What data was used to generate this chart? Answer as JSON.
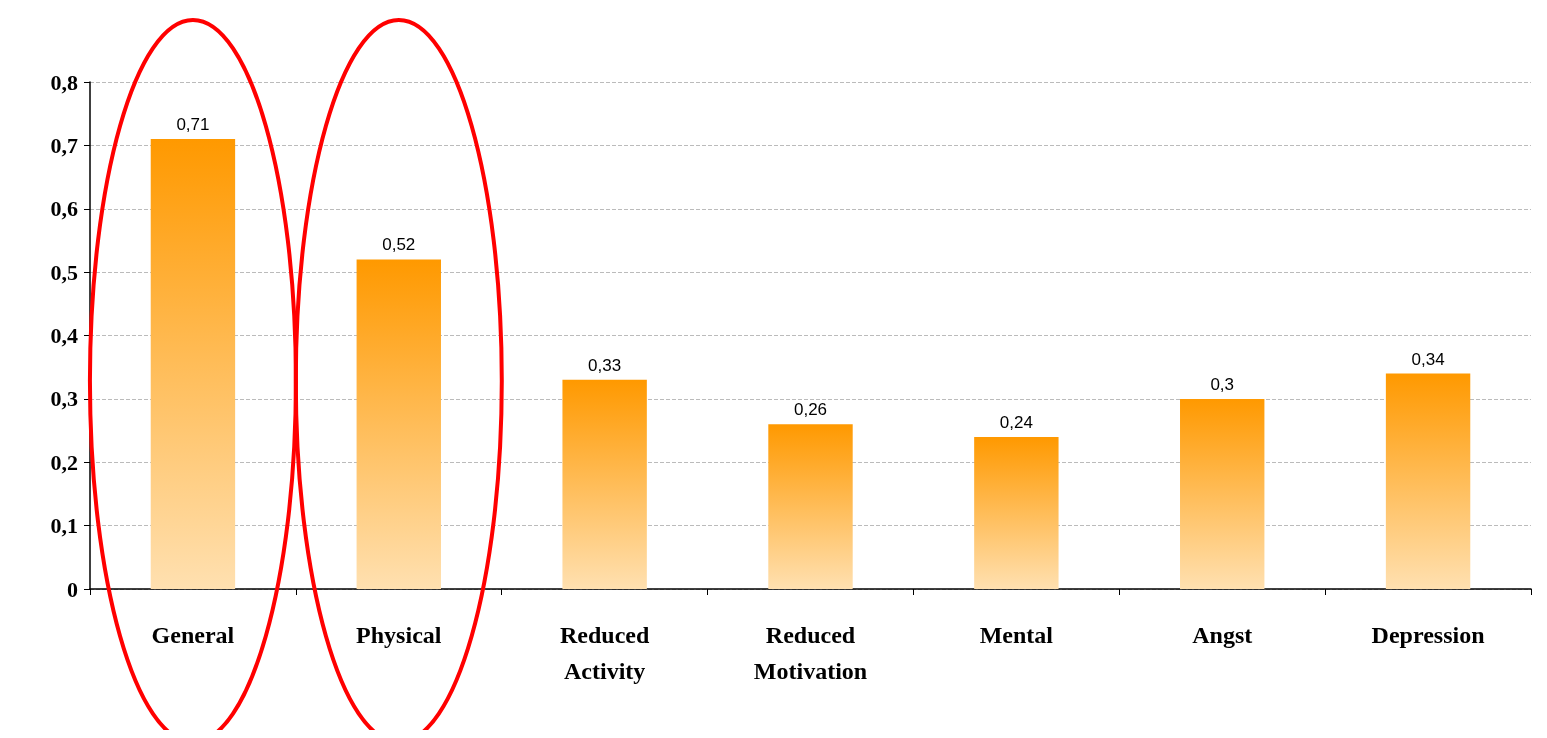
{
  "chart_data": {
    "type": "bar",
    "categories": [
      "General",
      "Physical",
      "Reduced\nActivity",
      "Reduced\nMotivation",
      "Mental",
      "Angst",
      "Depression"
    ],
    "values": [
      0.71,
      0.52,
      0.33,
      0.26,
      0.24,
      0.3,
      0.34
    ],
    "value_labels": [
      "0,71",
      "0,52",
      "0,33",
      "0,26",
      "0,24",
      "0,3",
      "0,34"
    ],
    "color": "#ff9900",
    "ylim": [
      0,
      0.8
    ],
    "yticks": [
      0,
      {
        "value": 0.1,
        "label": "0,1"
      },
      {
        "value": 0.2,
        "label": "0,2"
      },
      {
        "value": 0.3,
        "label": "0,3"
      },
      {
        "value": 0.4,
        "label": "0,4"
      },
      {
        "value": 0.5,
        "label": "0,5"
      },
      {
        "value": 0.6,
        "label": "0,6"
      },
      {
        "value": 0.7,
        "label": "0,7"
      },
      {
        "value": 0.8,
        "label": "0,8"
      }
    ],
    "grid": "y"
  }
}
